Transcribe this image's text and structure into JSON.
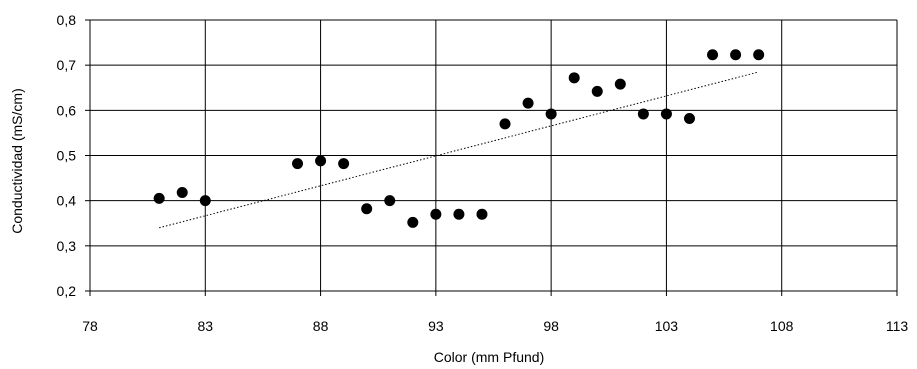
{
  "chart_data": {
    "type": "scatter",
    "title": "",
    "xlabel": "Color (mm Pfund)",
    "ylabel": "Conductividad (mS/cm)",
    "xlim": [
      78,
      113
    ],
    "ylim": [
      0.2,
      0.8
    ],
    "xticks": [
      78,
      83,
      88,
      93,
      98,
      103,
      108,
      113
    ],
    "xtick_labels": [
      "78",
      "83",
      "88",
      "93",
      "98",
      "103",
      "108",
      "113"
    ],
    "yticks": [
      0.2,
      0.3,
      0.4,
      0.5,
      0.6,
      0.7,
      0.8
    ],
    "ytick_labels": [
      "0,2",
      "0,3",
      "0,4",
      "0,5",
      "0,6",
      "0,7",
      "0,8"
    ],
    "grid": true,
    "series": [
      {
        "x": [
          81,
          82,
          83,
          87,
          88,
          89,
          90,
          91,
          92,
          93,
          94,
          95,
          96,
          97,
          98,
          99,
          100,
          101,
          102,
          103,
          104,
          105,
          106,
          107
        ],
        "y": [
          0.405,
          0.418,
          0.4,
          0.482,
          0.488,
          0.482,
          0.382,
          0.4,
          0.352,
          0.37,
          0.37,
          0.37,
          0.57,
          0.616,
          0.592,
          0.672,
          0.642,
          0.658,
          0.592,
          0.592,
          0.582,
          0.723,
          0.723,
          0.723
        ],
        "color": "#000000"
      }
    ],
    "trendline": {
      "type": "linear",
      "x": [
        81,
        107
      ],
      "y": [
        0.34,
        0.685
      ],
      "style": "dotted",
      "color": "#000000"
    }
  }
}
